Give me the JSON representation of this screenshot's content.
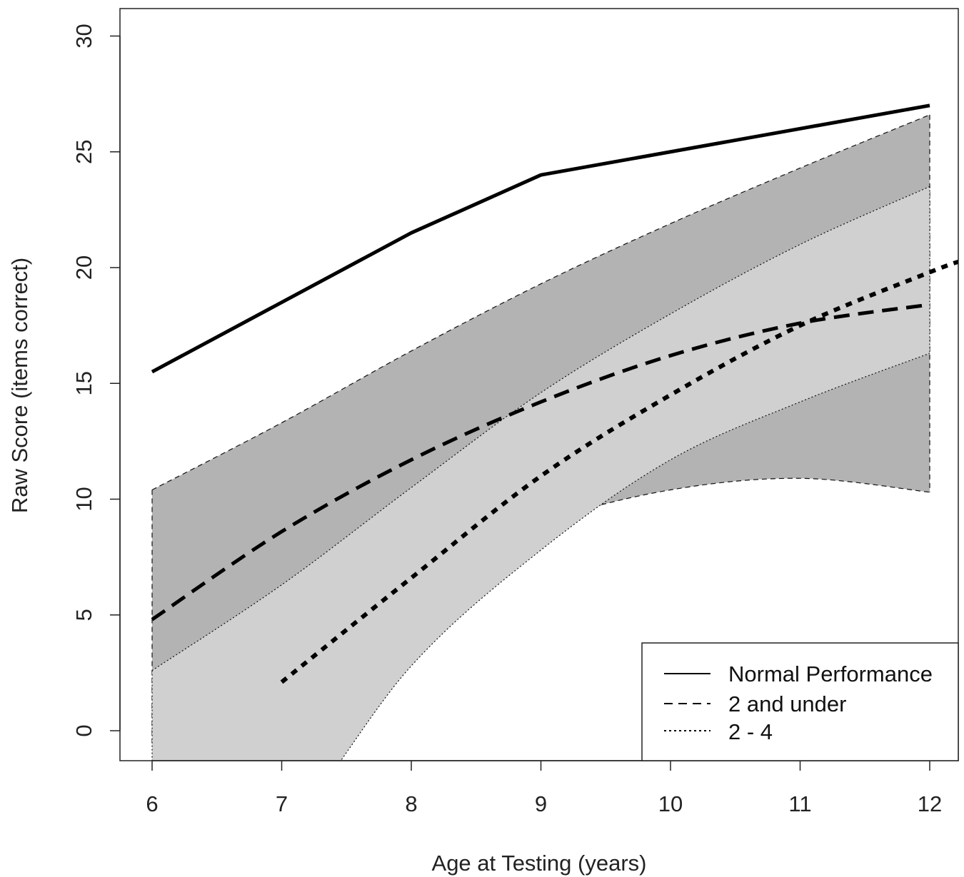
{
  "chart_data": {
    "type": "line",
    "title": "",
    "xlabel": "Age at Testing (years)",
    "ylabel": "Raw Score (items correct)",
    "xlim": [
      5.75,
      12.2
    ],
    "ylim": [
      -1.1,
      31.1
    ],
    "x_ticks": [
      6,
      7,
      8,
      9,
      10,
      11,
      12
    ],
    "x_tick_labels": [
      "6",
      "7",
      "8",
      "9",
      "10",
      "11",
      "12"
    ],
    "y_ticks": [
      0,
      5,
      10,
      15,
      20,
      25,
      30
    ],
    "y_tick_labels": [
      "0",
      "5",
      "10",
      "15",
      "20",
      "25",
      "30"
    ],
    "grid": false,
    "legend_position": "bottom-right",
    "series": [
      {
        "name": "Normal Performance",
        "style": "solid",
        "x": [
          6,
          7,
          8,
          9,
          10,
          11,
          12
        ],
        "y": [
          15.5,
          18.5,
          21.5,
          24.0,
          25.0,
          26.0,
          27.0
        ]
      },
      {
        "name": "2 and under",
        "style": "dashed",
        "x": [
          6,
          7,
          8,
          9,
          10,
          11,
          12
        ],
        "y": [
          4.8,
          8.6,
          11.7,
          14.2,
          16.2,
          17.6,
          18.4
        ]
      },
      {
        "name": "2 - 4",
        "style": "dotted",
        "x": [
          7,
          8,
          9,
          10,
          11,
          12,
          12.25
        ],
        "y": [
          2.1,
          6.6,
          11.0,
          14.5,
          17.5,
          19.8,
          20.3
        ]
      }
    ],
    "bands": [
      {
        "series": "2 and under",
        "x": [
          6,
          7,
          8,
          9,
          10,
          11,
          12
        ],
        "upper": [
          10.4,
          13.3,
          16.4,
          19.3,
          21.9,
          24.3,
          26.6
        ],
        "lower": [
          -0.6,
          3.7,
          6.8,
          9.0,
          10.4,
          10.9,
          10.3
        ]
      },
      {
        "series": "2 - 4",
        "x": [
          6,
          7,
          8,
          9,
          10,
          11,
          12
        ],
        "upper": [
          2.6,
          6.3,
          10.5,
          14.6,
          18.0,
          21.0,
          23.5
        ],
        "lower": [
          -8.0,
          -4.5,
          2.8,
          7.8,
          11.7,
          14.2,
          16.3
        ]
      }
    ],
    "colors": {
      "band_dark": "#b3b3b3",
      "band_light": "#d0d0d0",
      "line": "#000000"
    }
  }
}
